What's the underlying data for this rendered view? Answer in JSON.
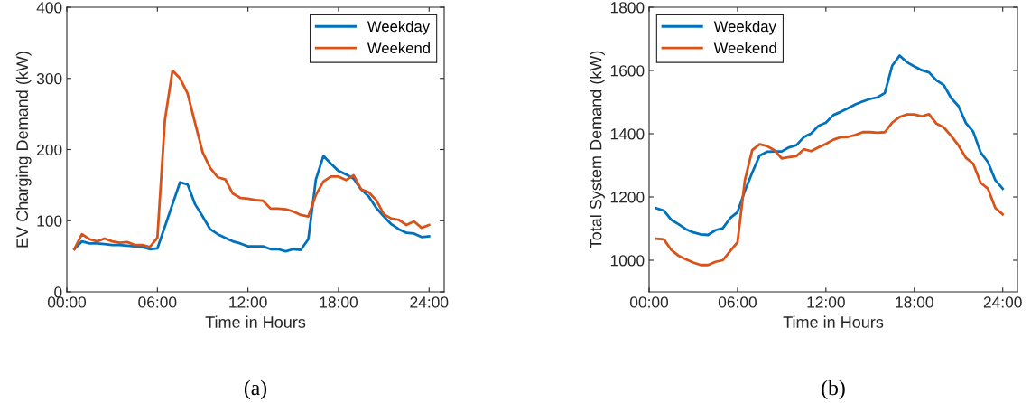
{
  "chart_data": [
    {
      "type": "line",
      "xlabel": "Time in Hours",
      "ylabel": "EV Charging Demand (kW)",
      "annotations": [
        "(a)"
      ],
      "x": [
        0.5,
        1,
        1.5,
        2,
        2.5,
        3,
        3.5,
        4,
        4.5,
        5,
        5.5,
        6,
        6.5,
        7,
        7.5,
        8,
        8.5,
        9,
        9.5,
        10,
        10.5,
        11,
        11.5,
        12,
        12.5,
        13,
        13.5,
        14,
        14.5,
        15,
        15.5,
        16,
        16.5,
        17,
        17.5,
        18,
        18.5,
        19,
        19.5,
        20,
        20.5,
        21,
        21.5,
        22,
        22.5,
        23,
        23.5,
        24
      ],
      "series": [
        {
          "name": "Weekday",
          "color": "#0072bd",
          "values": [
            60,
            71,
            68,
            68,
            67,
            66,
            66,
            65,
            64,
            63,
            60,
            61,
            92,
            123,
            154,
            151,
            123,
            106,
            88,
            81,
            76,
            71,
            68,
            64,
            64,
            64,
            60,
            60,
            57,
            60,
            59,
            74,
            158,
            191,
            180,
            170,
            165,
            159,
            144,
            134,
            118,
            106,
            95,
            88,
            83,
            82,
            77,
            78
          ]
        },
        {
          "name": "Weekend",
          "color": "#d95319",
          "values": [
            60,
            81,
            74,
            71,
            75,
            71,
            69,
            70,
            66,
            66,
            63,
            76,
            242,
            311,
            300,
            279,
            237,
            196,
            174,
            161,
            158,
            138,
            132,
            131,
            129,
            128,
            117,
            117,
            116,
            113,
            108,
            106,
            136,
            155,
            162,
            162,
            157,
            164,
            144,
            140,
            129,
            109,
            103,
            101,
            94,
            99,
            90,
            94
          ]
        }
      ],
      "xlim": [
        0,
        25
      ],
      "ylim": [
        0,
        400
      ],
      "xticks": [
        {
          "value": 0,
          "label": "00:00"
        },
        {
          "value": 6,
          "label": "06:00"
        },
        {
          "value": 12,
          "label": "12:00"
        },
        {
          "value": 18,
          "label": "18:00"
        },
        {
          "value": 24,
          "label": "24:00"
        }
      ],
      "yticks": [
        0,
        100,
        200,
        300,
        400
      ],
      "grid": false,
      "legend": "top right",
      "line_style": "solid",
      "marker": "none"
    },
    {
      "type": "line",
      "xlabel": "Time in Hours",
      "ylabel": "Total System Demand (kW)",
      "annotations": [
        "(b)"
      ],
      "x": [
        0.5,
        1,
        1.5,
        2,
        2.5,
        3,
        3.5,
        4,
        4.5,
        5,
        5.5,
        6,
        6.5,
        7,
        7.5,
        8,
        8.5,
        9,
        9.5,
        10,
        10.5,
        11,
        11.5,
        12,
        12.5,
        13,
        13.5,
        14,
        14.5,
        15,
        15.5,
        16,
        16.5,
        17,
        17.5,
        18,
        18.5,
        19,
        19.5,
        20,
        20.5,
        21,
        21.5,
        22,
        22.5,
        23,
        23.5,
        24
      ],
      "series": [
        {
          "name": "Weekday",
          "color": "#0072bd",
          "values": [
            1164,
            1157,
            1128,
            1114,
            1098,
            1088,
            1082,
            1080,
            1095,
            1101,
            1133,
            1152,
            1219,
            1277,
            1331,
            1343,
            1344,
            1344,
            1357,
            1364,
            1389,
            1401,
            1425,
            1435,
            1459,
            1469,
            1481,
            1493,
            1502,
            1510,
            1515,
            1529,
            1615,
            1647,
            1626,
            1613,
            1601,
            1594,
            1569,
            1554,
            1513,
            1487,
            1434,
            1406,
            1341,
            1310,
            1253,
            1226
          ]
        },
        {
          "name": "Weekend",
          "color": "#d95319",
          "values": [
            1068,
            1066,
            1033,
            1014,
            1003,
            993,
            985,
            985,
            995,
            1000,
            1029,
            1057,
            1253,
            1348,
            1367,
            1361,
            1348,
            1322,
            1326,
            1329,
            1351,
            1345,
            1357,
            1368,
            1381,
            1389,
            1390,
            1396,
            1405,
            1405,
            1403,
            1405,
            1435,
            1453,
            1461,
            1461,
            1455,
            1462,
            1432,
            1420,
            1393,
            1363,
            1324,
            1305,
            1245,
            1226,
            1165,
            1145
          ]
        }
      ],
      "xlim": [
        0,
        25
      ],
      "ylim": [
        900,
        1800
      ],
      "xticks": [
        {
          "value": 0,
          "label": "00:00"
        },
        {
          "value": 6,
          "label": "06:00"
        },
        {
          "value": 12,
          "label": "12:00"
        },
        {
          "value": 18,
          "label": "18:00"
        },
        {
          "value": 24,
          "label": "24:00"
        }
      ],
      "yticks": [
        1000,
        1200,
        1400,
        1600,
        1800
      ],
      "grid": false,
      "legend": "top left",
      "line_style": "solid",
      "marker": "none"
    }
  ]
}
